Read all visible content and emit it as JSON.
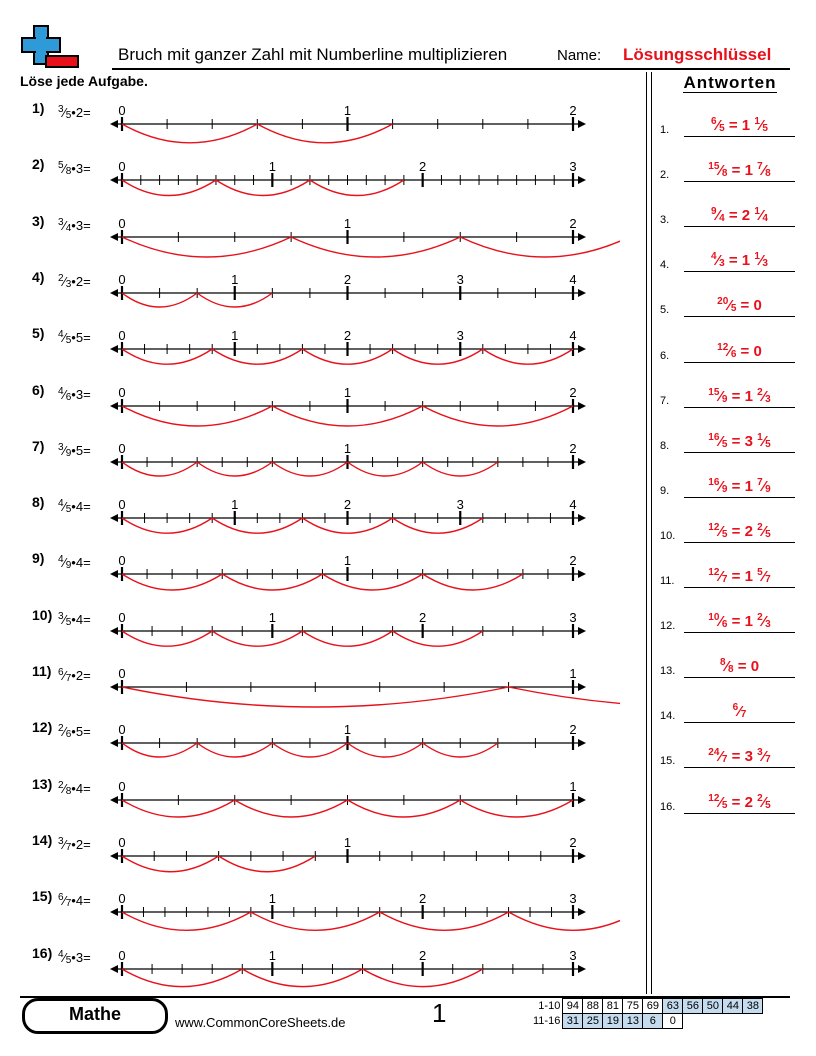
{
  "header": {
    "title": "Bruch mit ganzer Zahl mit Numberline multiplizieren",
    "name_label": "Name:",
    "key_label": "Lösungsschlüssel",
    "logo": "plus-minus-logo-icon"
  },
  "instructions": "Löse jede Aufgabe.",
  "answers_title": "Antworten",
  "colors": {
    "accent": "#e8111b",
    "logo_blue": "#2f9ad8",
    "logo_red": "#e8111b"
  },
  "problems": [
    {
      "num": "1)",
      "n": "3",
      "d": "5",
      "k": "2",
      "whole": 2
    },
    {
      "num": "2)",
      "n": "5",
      "d": "8",
      "k": "3",
      "whole": 3
    },
    {
      "num": "3)",
      "n": "3",
      "d": "4",
      "k": "3",
      "whole": 2
    },
    {
      "num": "4)",
      "n": "2",
      "d": "3",
      "k": "2",
      "whole": 4
    },
    {
      "num": "5)",
      "n": "4",
      "d": "5",
      "k": "5",
      "whole": 4
    },
    {
      "num": "6)",
      "n": "4",
      "d": "6",
      "k": "3",
      "whole": 2
    },
    {
      "num": "7)",
      "n": "3",
      "d": "9",
      "k": "5",
      "whole": 2
    },
    {
      "num": "8)",
      "n": "4",
      "d": "5",
      "k": "4",
      "whole": 4
    },
    {
      "num": "9)",
      "n": "4",
      "d": "9",
      "k": "4",
      "whole": 2
    },
    {
      "num": "10)",
      "n": "3",
      "d": "5",
      "k": "4",
      "whole": 3
    },
    {
      "num": "11)",
      "n": "6",
      "d": "7",
      "k": "2",
      "whole": 1
    },
    {
      "num": "12)",
      "n": "2",
      "d": "6",
      "k": "5",
      "whole": 2
    },
    {
      "num": "13)",
      "n": "2",
      "d": "8",
      "k": "4",
      "whole": 1
    },
    {
      "num": "14)",
      "n": "3",
      "d": "7",
      "k": "2",
      "whole": 2
    },
    {
      "num": "15)",
      "n": "6",
      "d": "7",
      "k": "4",
      "whole": 3
    },
    {
      "num": "16)",
      "n": "4",
      "d": "5",
      "k": "3",
      "whole": 3
    }
  ],
  "answers": [
    {
      "num": "1.",
      "n": "6",
      "d": "5",
      "mixed": "1",
      "mn": "1",
      "md": "5"
    },
    {
      "num": "2.",
      "n": "15",
      "d": "8",
      "mixed": "1",
      "mn": "7",
      "md": "8"
    },
    {
      "num": "3.",
      "n": "9",
      "d": "4",
      "mixed": "2",
      "mn": "1",
      "md": "4"
    },
    {
      "num": "4.",
      "n": "4",
      "d": "3",
      "mixed": "1",
      "mn": "1",
      "md": "3"
    },
    {
      "num": "5.",
      "n": "20",
      "d": "5",
      "mixed": "0",
      "mn": "",
      "md": ""
    },
    {
      "num": "6.",
      "n": "12",
      "d": "6",
      "mixed": "0",
      "mn": "",
      "md": ""
    },
    {
      "num": "7.",
      "n": "15",
      "d": "9",
      "mixed": "1",
      "mn": "2",
      "md": "3"
    },
    {
      "num": "8.",
      "n": "16",
      "d": "5",
      "mixed": "3",
      "mn": "1",
      "md": "5"
    },
    {
      "num": "9.",
      "n": "16",
      "d": "9",
      "mixed": "1",
      "mn": "7",
      "md": "9"
    },
    {
      "num": "10.",
      "n": "12",
      "d": "5",
      "mixed": "2",
      "mn": "2",
      "md": "5"
    },
    {
      "num": "11.",
      "n": "12",
      "d": "7",
      "mixed": "1",
      "mn": "5",
      "md": "7"
    },
    {
      "num": "12.",
      "n": "10",
      "d": "6",
      "mixed": "1",
      "mn": "2",
      "md": "3"
    },
    {
      "num": "13.",
      "n": "8",
      "d": "8",
      "mixed": "0",
      "mn": "",
      "md": ""
    },
    {
      "num": "14.",
      "n": "6",
      "d": "7",
      "mixed": "",
      "mn": "",
      "md": ""
    },
    {
      "num": "15.",
      "n": "24",
      "d": "7",
      "mixed": "3",
      "mn": "3",
      "md": "7"
    },
    {
      "num": "16.",
      "n": "12",
      "d": "5",
      "mixed": "2",
      "mn": "2",
      "md": "5"
    }
  ],
  "footer": {
    "badge": "Mathe",
    "website": "www.CommonCoreSheets.de",
    "page": "1",
    "score_rows": [
      {
        "label": "1-10",
        "cells": [
          "94",
          "88",
          "81",
          "75",
          "69",
          "63",
          "56",
          "50",
          "44",
          "38"
        ],
        "highlight_from": 5
      },
      {
        "label": "11-16",
        "cells": [
          "31",
          "25",
          "19",
          "13",
          "6",
          "0"
        ],
        "highlight_to": 4
      }
    ]
  }
}
